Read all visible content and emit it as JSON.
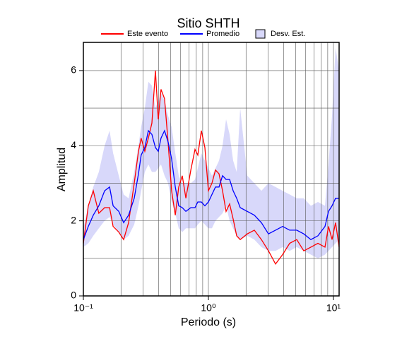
{
  "chart_data": {
    "type": "line",
    "title": "Sitio SHTH",
    "x_label": "Periodo (s)",
    "y_label": "Amplitud",
    "x_scale": "log",
    "x": [
      0.1,
      0.1095,
      0.12,
      0.133,
      0.148,
      0.162,
      0.173,
      0.192,
      0.21,
      0.23,
      0.255,
      0.276,
      0.29,
      0.31,
      0.331,
      0.353,
      0.377,
      0.397,
      0.418,
      0.446,
      0.476,
      0.508,
      0.543,
      0.579,
      0.618,
      0.66,
      0.723,
      0.781,
      0.823,
      0.878,
      0.937,
      1,
      1.067,
      1.139,
      1.215,
      1.297,
      1.384,
      1.477,
      1.576,
      1.682,
      1.795,
      2.045,
      2.33,
      2.653,
      3.022,
      3.442,
      3.92,
      4.465,
      5.085,
      5.791,
      6.596,
      7.512,
      8.555,
      9.13,
      9.74,
      10.4,
      11.1
    ],
    "series": [
      {
        "name": "Este evento",
        "color": "#ff0000",
        "values": [
          1.4,
          2.4,
          2.8,
          2.2,
          2.35,
          2.35,
          1.85,
          1.7,
          1.5,
          1.95,
          3.0,
          3.85,
          4.2,
          3.85,
          4.2,
          4.6,
          6.0,
          4.7,
          5.5,
          5.25,
          4.1,
          2.8,
          2.15,
          2.9,
          3.2,
          2.6,
          3.35,
          3.9,
          3.75,
          4.4,
          3.95,
          2.8,
          3.0,
          3.35,
          3.25,
          2.8,
          2.25,
          2.45,
          2.05,
          1.6,
          1.5,
          1.65,
          1.75,
          1.5,
          1.2,
          0.85,
          1.1,
          1.4,
          1.5,
          1.2,
          1.3,
          1.4,
          1.3,
          1.85,
          1.5,
          1.95,
          1.3
        ]
      },
      {
        "name": "Promedio",
        "color": "#0000ff",
        "values": [
          1.5,
          1.85,
          2.15,
          2.4,
          2.8,
          2.9,
          2.4,
          2.25,
          1.95,
          2.15,
          2.6,
          3.25,
          3.75,
          3.95,
          4.4,
          4.3,
          3.95,
          3.85,
          4.2,
          4.4,
          4.1,
          3.65,
          2.9,
          2.4,
          2.35,
          2.25,
          2.35,
          2.35,
          2.5,
          2.5,
          2.4,
          2.5,
          2.7,
          2.9,
          2.9,
          3.2,
          3.1,
          3.1,
          2.8,
          2.6,
          2.35,
          2.25,
          2.15,
          1.95,
          1.65,
          1.75,
          1.85,
          1.75,
          1.75,
          1.65,
          1.5,
          1.6,
          1.85,
          2.25,
          2.4,
          2.6,
          2.6
        ]
      },
      {
        "name": "Desv. Est.",
        "color": "#d8d8fa",
        "upper": [
          1.8,
          2.4,
          2.9,
          3.3,
          4.0,
          4.4,
          3.8,
          3.2,
          2.7,
          2.6,
          3.3,
          4.0,
          4.5,
          5.0,
          5.7,
          5.6,
          5.0,
          5.2,
          5.4,
          5.2,
          4.8,
          4.5,
          3.8,
          3.2,
          3.0,
          3.0,
          3.0,
          3.1,
          3.4,
          3.8,
          3.6,
          3.4,
          3.2,
          3.4,
          3.6,
          4.0,
          4.7,
          4.3,
          3.6,
          3.3,
          5.0,
          3.2,
          3.0,
          2.8,
          3.0,
          2.9,
          2.8,
          2.7,
          2.6,
          2.6,
          2.4,
          2.5,
          2.4,
          3.5,
          4.8,
          6.6,
          6.0
        ],
        "lower": [
          1.3,
          1.4,
          1.6,
          1.8,
          2.0,
          2.1,
          1.9,
          1.7,
          1.5,
          1.6,
          1.9,
          2.4,
          2.8,
          3.3,
          3.5,
          3.3,
          3.3,
          3.4,
          3.5,
          3.2,
          3.0,
          2.5,
          2.2,
          1.8,
          1.7,
          1.8,
          1.8,
          1.8,
          1.9,
          2.0,
          1.9,
          1.8,
          1.8,
          2.0,
          2.1,
          2.2,
          2.4,
          2.0,
          1.8,
          1.6,
          1.5,
          1.6,
          1.5,
          1.3,
          1.2,
          1.2,
          1.3,
          1.2,
          1.3,
          1.2,
          1.1,
          1.0,
          1.1,
          1.2,
          1.3,
          1.4,
          1.5
        ]
      }
    ],
    "xlim": [
      0.1,
      11.1
    ],
    "ylim": [
      0,
      6.75
    ],
    "xticks": [
      {
        "value": 0.1,
        "label": "10⁻¹"
      },
      {
        "value": 1,
        "label": "10⁰"
      },
      {
        "value": 10,
        "label": "10¹"
      }
    ],
    "xminor": [
      0.2,
      0.3,
      0.4,
      0.5,
      0.6,
      0.7,
      0.8,
      0.9,
      2,
      3,
      4,
      5,
      6,
      7,
      8,
      9
    ],
    "yticks": [
      0,
      2,
      4,
      6
    ],
    "yminor": [
      1,
      3,
      5
    ],
    "grid": true
  }
}
